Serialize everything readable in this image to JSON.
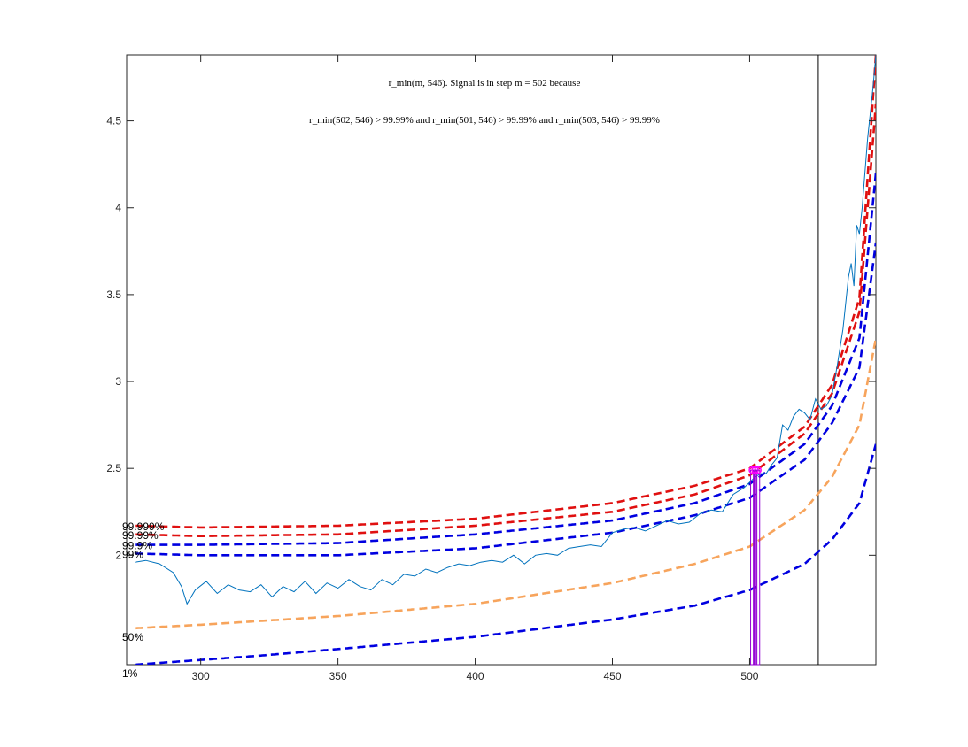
{
  "chart_data": {
    "type": "line",
    "title_line1": "r_min(m, 546). Signal is in step m = 502 because",
    "title_line2": "r_min(502, 546) > 99.99% and r_min(501, 546) > 99.99% and r_min(503, 546) > 99.99%",
    "xlabel": "",
    "ylabel": "",
    "xlim": [
      273,
      546
    ],
    "ylim": [
      1.37,
      4.88
    ],
    "x_ticks": [
      300,
      350,
      400,
      450,
      500
    ],
    "y_ticks": [
      2,
      2.5,
      3,
      3.5,
      4,
      4.5
    ],
    "y_tick_labels": [
      "2",
      "2.5",
      "3",
      "3.5",
      "4",
      "4.5"
    ],
    "grid": false,
    "vertical_line_x": 525,
    "signal_step": 502,
    "signal_bars_x": [
      501,
      502,
      503
    ],
    "signal_marker_y": 2.49,
    "colors": {
      "signal": "#0072bd",
      "red_threshold": "#e01010",
      "blue_threshold": "#0000e0",
      "orange_threshold": "#f7a45c",
      "signal_bars": "#9400d3",
      "marker": "#ff00ff",
      "axes": "#262626",
      "vline": "#000000"
    },
    "thresholds": [
      {
        "label": "1%",
        "color_key": "blue_threshold",
        "points": [
          [
            276,
            1.37
          ],
          [
            320,
            1.42
          ],
          [
            350,
            1.46
          ],
          [
            400,
            1.53
          ],
          [
            450,
            1.63
          ],
          [
            480,
            1.71
          ],
          [
            500,
            1.8
          ],
          [
            520,
            1.95
          ],
          [
            530,
            2.09
          ],
          [
            540,
            2.3
          ],
          [
            546,
            2.64
          ]
        ]
      },
      {
        "label": "50%",
        "color_key": "orange_threshold",
        "points": [
          [
            276,
            1.58
          ],
          [
            300,
            1.6
          ],
          [
            350,
            1.65
          ],
          [
            400,
            1.72
          ],
          [
            450,
            1.84
          ],
          [
            480,
            1.95
          ],
          [
            500,
            2.05
          ],
          [
            520,
            2.26
          ],
          [
            530,
            2.45
          ],
          [
            540,
            2.75
          ],
          [
            546,
            3.25
          ]
        ]
      },
      {
        "label": "99%",
        "color_key": "blue_threshold",
        "points": [
          [
            276,
            2.01
          ],
          [
            300,
            2.0
          ],
          [
            350,
            2.0
          ],
          [
            400,
            2.04
          ],
          [
            450,
            2.13
          ],
          [
            480,
            2.23
          ],
          [
            500,
            2.33
          ],
          [
            520,
            2.55
          ],
          [
            530,
            2.76
          ],
          [
            540,
            3.08
          ],
          [
            546,
            3.8
          ]
        ]
      },
      {
        "label": "99.9%",
        "color_key": "blue_threshold",
        "points": [
          [
            276,
            2.06
          ],
          [
            300,
            2.06
          ],
          [
            350,
            2.07
          ],
          [
            400,
            2.12
          ],
          [
            450,
            2.2
          ],
          [
            480,
            2.3
          ],
          [
            500,
            2.41
          ],
          [
            520,
            2.64
          ],
          [
            530,
            2.86
          ],
          [
            540,
            3.25
          ],
          [
            546,
            4.2
          ]
        ]
      },
      {
        "label": "99.99%",
        "color_key": "red_threshold",
        "points": [
          [
            276,
            2.12
          ],
          [
            300,
            2.11
          ],
          [
            350,
            2.12
          ],
          [
            400,
            2.17
          ],
          [
            450,
            2.25
          ],
          [
            480,
            2.35
          ],
          [
            500,
            2.46
          ],
          [
            520,
            2.7
          ],
          [
            530,
            2.93
          ],
          [
            540,
            3.4
          ],
          [
            546,
            4.6
          ]
        ]
      },
      {
        "label": "99.999%",
        "color_key": "red_threshold",
        "points": [
          [
            276,
            2.17
          ],
          [
            300,
            2.16
          ],
          [
            350,
            2.17
          ],
          [
            400,
            2.21
          ],
          [
            450,
            2.3
          ],
          [
            480,
            2.4
          ],
          [
            500,
            2.5
          ],
          [
            520,
            2.74
          ],
          [
            530,
            2.98
          ],
          [
            540,
            3.48
          ],
          [
            546,
            4.88
          ]
        ]
      }
    ],
    "series": [
      {
        "x": [
          276,
          280,
          285,
          290,
          293,
          295,
          298,
          302,
          306,
          310,
          314,
          318,
          322,
          326,
          330,
          334,
          338,
          342,
          346,
          350,
          354,
          358,
          362,
          366,
          370,
          374,
          378,
          382,
          386,
          390,
          394,
          398,
          402,
          406,
          410,
          414,
          418,
          422,
          426,
          430,
          434,
          438,
          442,
          446,
          450,
          454,
          458,
          462,
          466,
          470,
          474,
          478,
          482,
          486,
          490,
          494,
          498,
          500,
          502,
          504,
          506,
          508,
          510,
          512,
          514,
          516,
          518,
          520,
          522,
          524,
          526,
          528,
          530,
          532,
          534,
          536,
          537,
          538,
          539,
          540,
          541,
          542,
          543,
          544,
          545,
          546
        ],
        "y": [
          1.96,
          1.97,
          1.95,
          1.9,
          1.82,
          1.72,
          1.8,
          1.85,
          1.78,
          1.83,
          1.8,
          1.79,
          1.83,
          1.76,
          1.82,
          1.79,
          1.85,
          1.78,
          1.84,
          1.81,
          1.86,
          1.82,
          1.8,
          1.86,
          1.83,
          1.89,
          1.88,
          1.92,
          1.9,
          1.93,
          1.95,
          1.94,
          1.96,
          1.97,
          1.96,
          2.0,
          1.95,
          2.0,
          2.01,
          2.0,
          2.04,
          2.05,
          2.06,
          2.05,
          2.13,
          2.15,
          2.16,
          2.14,
          2.17,
          2.2,
          2.18,
          2.19,
          2.24,
          2.26,
          2.25,
          2.35,
          2.39,
          2.42,
          2.45,
          2.47,
          2.47,
          2.52,
          2.56,
          2.75,
          2.72,
          2.8,
          2.84,
          2.82,
          2.78,
          2.9,
          2.84,
          2.86,
          2.92,
          3.1,
          3.3,
          3.6,
          3.68,
          3.55,
          3.9,
          3.85,
          4.0,
          4.2,
          4.4,
          4.55,
          4.7,
          4.88
        ]
      }
    ]
  }
}
